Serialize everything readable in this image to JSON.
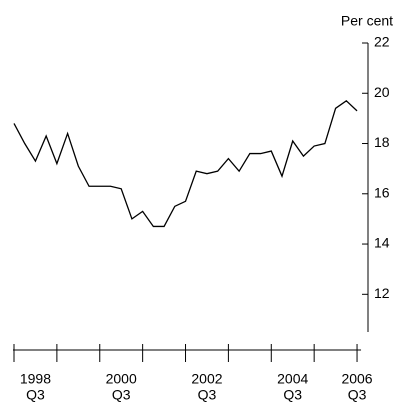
{
  "chart_data": {
    "type": "line",
    "y_axis_label": "Per cent",
    "categories": [
      null,
      null,
      [
        "1998",
        "Q3"
      ],
      null,
      null,
      null,
      null,
      null,
      null,
      null,
      [
        "2000",
        "Q3"
      ],
      null,
      null,
      null,
      null,
      null,
      null,
      null,
      [
        "2002",
        "Q3"
      ],
      null,
      null,
      null,
      null,
      null,
      null,
      null,
      [
        "2004",
        "Q3"
      ],
      null,
      null,
      null,
      null,
      null,
      [
        "2006",
        "Q3"
      ]
    ],
    "values": [
      18.8,
      18.0,
      17.3,
      18.3,
      17.2,
      18.4,
      17.1,
      16.3,
      16.3,
      16.3,
      16.2,
      15.0,
      15.3,
      14.7,
      14.7,
      15.5,
      15.7,
      16.9,
      16.8,
      16.9,
      17.4,
      16.9,
      17.6,
      17.6,
      17.7,
      16.7,
      18.1,
      17.5,
      17.9,
      18.0,
      19.4,
      19.7,
      19.3
    ],
    "color": "#000000",
    "ylim": [
      10.5,
      22
    ],
    "yticks": [
      12,
      14,
      16,
      18,
      20,
      22
    ],
    "y_axis_side": "right"
  }
}
